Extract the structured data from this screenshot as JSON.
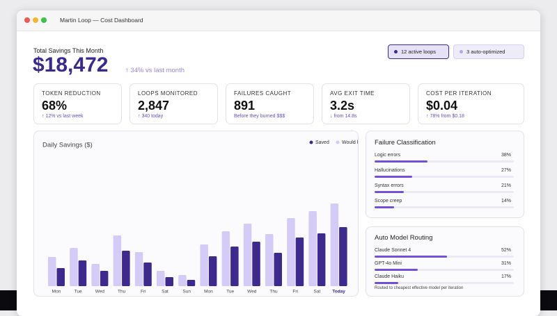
{
  "window_title": "Martin Loop — Cost Dashboard",
  "header": {
    "label": "Total Savings This Month",
    "amount": "$18,472",
    "change": "↑ 34% vs last month"
  },
  "badges": [
    "12 active loops",
    "3 auto-optimized"
  ],
  "stats": [
    {
      "label": "TOKEN REDUCTION",
      "value": "68%",
      "sub": "↑ 12% vs last week"
    },
    {
      "label": "LOOPS MONITORED",
      "value": "2,847",
      "sub": "↑ 340 today"
    },
    {
      "label": "FAILURES CAUGHT",
      "value": "891",
      "sub": "Before they burned $$$"
    },
    {
      "label": "AVG EXIT TIME",
      "value": "3.2s",
      "sub": "↓ from 14.8s"
    },
    {
      "label": "COST PER ITERATION",
      "value": "$0.04",
      "sub": "↑ 78% from $0.18"
    }
  ],
  "chart_data": {
    "type": "bar",
    "title": "Daily Savings ($)",
    "categories": [
      "Mon",
      "Tue",
      "Wed",
      "Thu",
      "Fri",
      "Sat",
      "Sun",
      "Mon",
      "Tue",
      "Wed",
      "Thu",
      "Fri",
      "Sat",
      "Today"
    ],
    "series": [
      {
        "name": "Saved",
        "color": "#3d2a8c",
        "values": [
          26,
          37,
          22,
          51,
          34,
          13,
          9,
          43,
          57,
          64,
          48,
          70,
          76,
          85
        ]
      },
      {
        "name": "Would have",
        "color": "#d4cbf6",
        "values": [
          42,
          55,
          32,
          73,
          49,
          22,
          16,
          60,
          79,
          90,
          75,
          98,
          108,
          119
        ]
      }
    ]
  },
  "failure_classification": {
    "title": "Failure Classification",
    "categories": [
      "Logic errors",
      "Hallucinations",
      "Syntax errors",
      "Scope creep"
    ],
    "values": [
      38,
      27,
      21,
      14
    ],
    "value_labels": [
      "38%",
      "27%",
      "21%",
      "14%"
    ]
  },
  "model_routing": {
    "title": "Auto Model Routing",
    "categories": [
      "Claude Sonnet 4",
      "GPT-4o Mini",
      "Claude Haiku"
    ],
    "values": [
      52,
      31,
      17
    ],
    "value_labels": [
      "52%",
      "31%",
      "17%"
    ],
    "note": "Routed to cheapest effective model per iteration"
  }
}
